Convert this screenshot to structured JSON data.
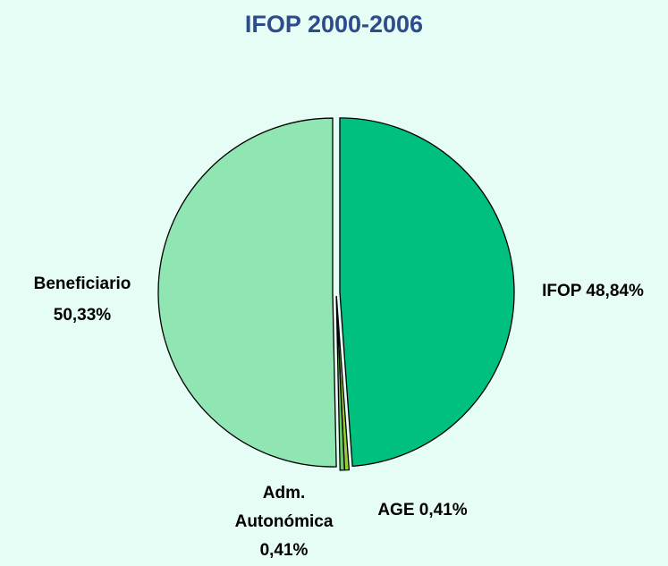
{
  "chart_data": {
    "type": "pie",
    "title": "IFOP 2000-2006",
    "categories": [
      "IFOP",
      "AGE",
      "Adm. Autonómica",
      "Beneficiario"
    ],
    "values": [
      48.84,
      0.41,
      0.41,
      50.33
    ],
    "value_labels": [
      "48,84%",
      "0,41%",
      "0,41%",
      "50,33%"
    ],
    "colors": [
      "#00c080",
      "#99cc33",
      "#66cc66",
      "#90e6b2"
    ]
  }
}
